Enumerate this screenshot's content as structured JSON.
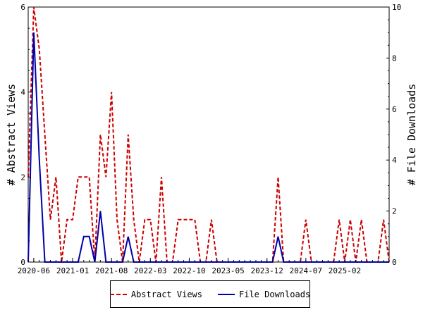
{
  "chart_data": {
    "type": "line",
    "title": "",
    "ylabel": "# Abstract Views",
    "y2label": "# File Downloads",
    "ylim": [
      0,
      6
    ],
    "y2lim": [
      0,
      10
    ],
    "yticks": [
      "0",
      "2",
      "4",
      "6"
    ],
    "y2ticks": [
      "0",
      "2",
      "4",
      "6",
      "8",
      "10"
    ],
    "xticks": [
      "2020-06",
      "2021-01",
      "2021-08",
      "2022-03",
      "2022-10",
      "2023-05",
      "2023-12",
      "2024-07",
      "2025-02"
    ],
    "x_start": "2020-05",
    "grid": false,
    "legend_position": "bottom",
    "series": [
      {
        "name": "Abstract Views",
        "axis": "left",
        "color": "#cc0000",
        "style": "dashed",
        "values": [
          2,
          6,
          5,
          3,
          1,
          2,
          0,
          1,
          1,
          2,
          2,
          2,
          0,
          3,
          2,
          4,
          1,
          0,
          3,
          1,
          0,
          1,
          1,
          0,
          2,
          0,
          0,
          1,
          1,
          1,
          1,
          0,
          0,
          1,
          0,
          0,
          0,
          0,
          0,
          0,
          0,
          0,
          0,
          0,
          0,
          2,
          0,
          0,
          0,
          0,
          1,
          0,
          0,
          0,
          0,
          0,
          1,
          0,
          1,
          0,
          1,
          0,
          0,
          0,
          1,
          0
        ]
      },
      {
        "name": "File Downloads",
        "axis": "right",
        "color": "#0000aa",
        "style": "solid",
        "values": [
          0,
          9,
          4,
          0,
          0,
          0,
          0,
          0,
          0,
          0,
          1,
          1,
          0,
          2,
          0,
          0,
          0,
          0,
          1,
          0,
          0,
          0,
          0,
          0,
          0,
          0,
          0,
          0,
          0,
          0,
          0,
          0,
          0,
          0,
          0,
          0,
          0,
          0,
          0,
          0,
          0,
          0,
          0,
          0,
          0,
          1,
          0,
          0,
          0,
          0,
          0,
          0,
          0,
          0,
          0,
          0,
          0,
          0,
          0,
          0,
          0,
          0,
          0,
          0,
          0,
          0
        ]
      }
    ]
  }
}
